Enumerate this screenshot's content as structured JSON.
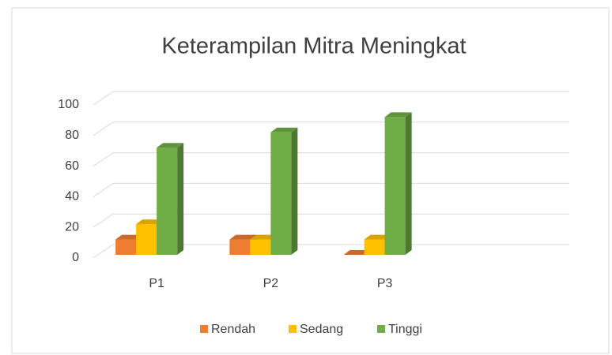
{
  "chart_data": {
    "type": "bar3d",
    "title": "Keterampilan Mitra Meningkat",
    "categories": [
      "P1",
      "P2",
      "P3",
      null
    ],
    "series": [
      {
        "name": "Rendah",
        "color": "#ed7d31",
        "values": [
          10,
          10,
          0,
          null
        ]
      },
      {
        "name": "Sedang",
        "color": "#ffc000",
        "values": [
          20,
          10,
          10,
          null
        ]
      },
      {
        "name": "Tinggi",
        "color": "#70ad47",
        "values": [
          70,
          80,
          90,
          null
        ]
      }
    ],
    "ylim": [
      0,
      100
    ],
    "yticks": [
      0,
      20,
      40,
      60,
      80,
      100
    ],
    "grid": true,
    "legend": "bottom"
  }
}
